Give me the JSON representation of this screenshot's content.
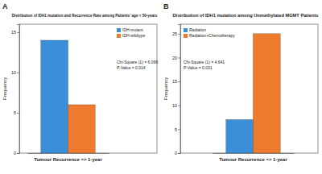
{
  "chart_data": [
    {
      "type": "bar",
      "panel_label": "A",
      "title": "Distribution of IDH1 mutation and Recurrence Rate among Patients' age < 50-years",
      "y_label": "Frequency",
      "categories": [
        "Tumour Recurrence => 1-year"
      ],
      "series": [
        {
          "name": "IDH-mutant",
          "color": "#3b8ed8",
          "values": [
            14
          ]
        },
        {
          "name": "IDH-wildtype",
          "color": "#ee7a2e",
          "values": [
            6
          ]
        }
      ],
      "ylim": [
        0,
        16
      ],
      "yticks": [
        0,
        5,
        10,
        15
      ],
      "grid": false,
      "legend": "top-right",
      "annotations": [
        "Chi-Square (1) = 6.099",
        "P-Value = 0.014"
      ]
    },
    {
      "type": "bar",
      "panel_label": "B",
      "title": "Distribution of IDH1 mutation among Unmethylated MGMT Patients",
      "y_label": "Frequency",
      "categories": [
        "Tumour Recurrence => 1-year"
      ],
      "series": [
        {
          "name": "Radiation",
          "color": "#3b8ed8",
          "values": [
            7
          ]
        },
        {
          "name": "Radiation+Chemotherapy",
          "color": "#ee7a2e",
          "values": [
            25
          ]
        }
      ],
      "ylim": [
        0,
        27
      ],
      "yticks": [
        0,
        5,
        10,
        15,
        20,
        25
      ],
      "grid": false,
      "legend": "top-left",
      "annotations": [
        "Chi-Square (1) = 4.641",
        "P-Value = 0.031"
      ]
    }
  ]
}
